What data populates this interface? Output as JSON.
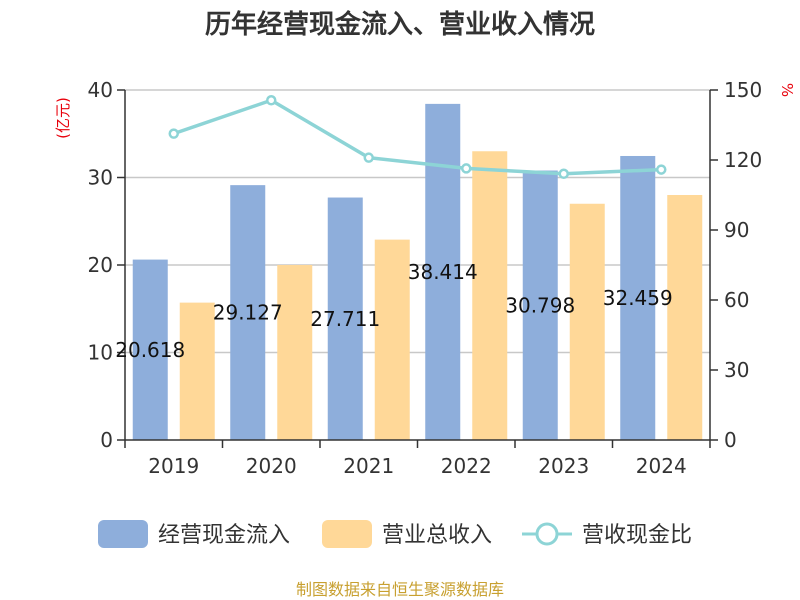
{
  "chart_data": {
    "type": "bar",
    "title": "历年经营现金流入、营业收入情况",
    "categories": [
      "2019",
      "2020",
      "2021",
      "2022",
      "2023",
      "2024"
    ],
    "series": [
      {
        "name": "经营现金流入",
        "type": "bar",
        "axis": "left",
        "color": "#8eaedb",
        "values": [
          20.618,
          29.127,
          27.711,
          38.414,
          30.798,
          32.459
        ]
      },
      {
        "name": "营业总收入",
        "type": "bar",
        "axis": "left",
        "color": "#ffd898",
        "values": [
          15.7,
          20.0,
          22.9,
          33.0,
          27.0,
          28.0
        ]
      },
      {
        "name": "营收现金比",
        "type": "line",
        "axis": "right",
        "color": "#8dd4d6",
        "values": [
          131.3,
          145.6,
          121.0,
          116.4,
          114.1,
          115.9
        ]
      }
    ],
    "ylabel": "(亿元)",
    "y2label": "%",
    "ylim": [
      0,
      40
    ],
    "yticks": [
      0,
      10,
      20,
      30,
      40
    ],
    "y2lim": [
      0,
      150
    ],
    "y2ticks": [
      0,
      30,
      60,
      90,
      120,
      150
    ],
    "data_labels": [
      "20.618",
      "29.127",
      "27.711",
      "38.414",
      "30.798",
      "32.459"
    ],
    "legend_position": "bottom",
    "grid": true
  },
  "source": "制图数据来自恒生聚源数据库"
}
